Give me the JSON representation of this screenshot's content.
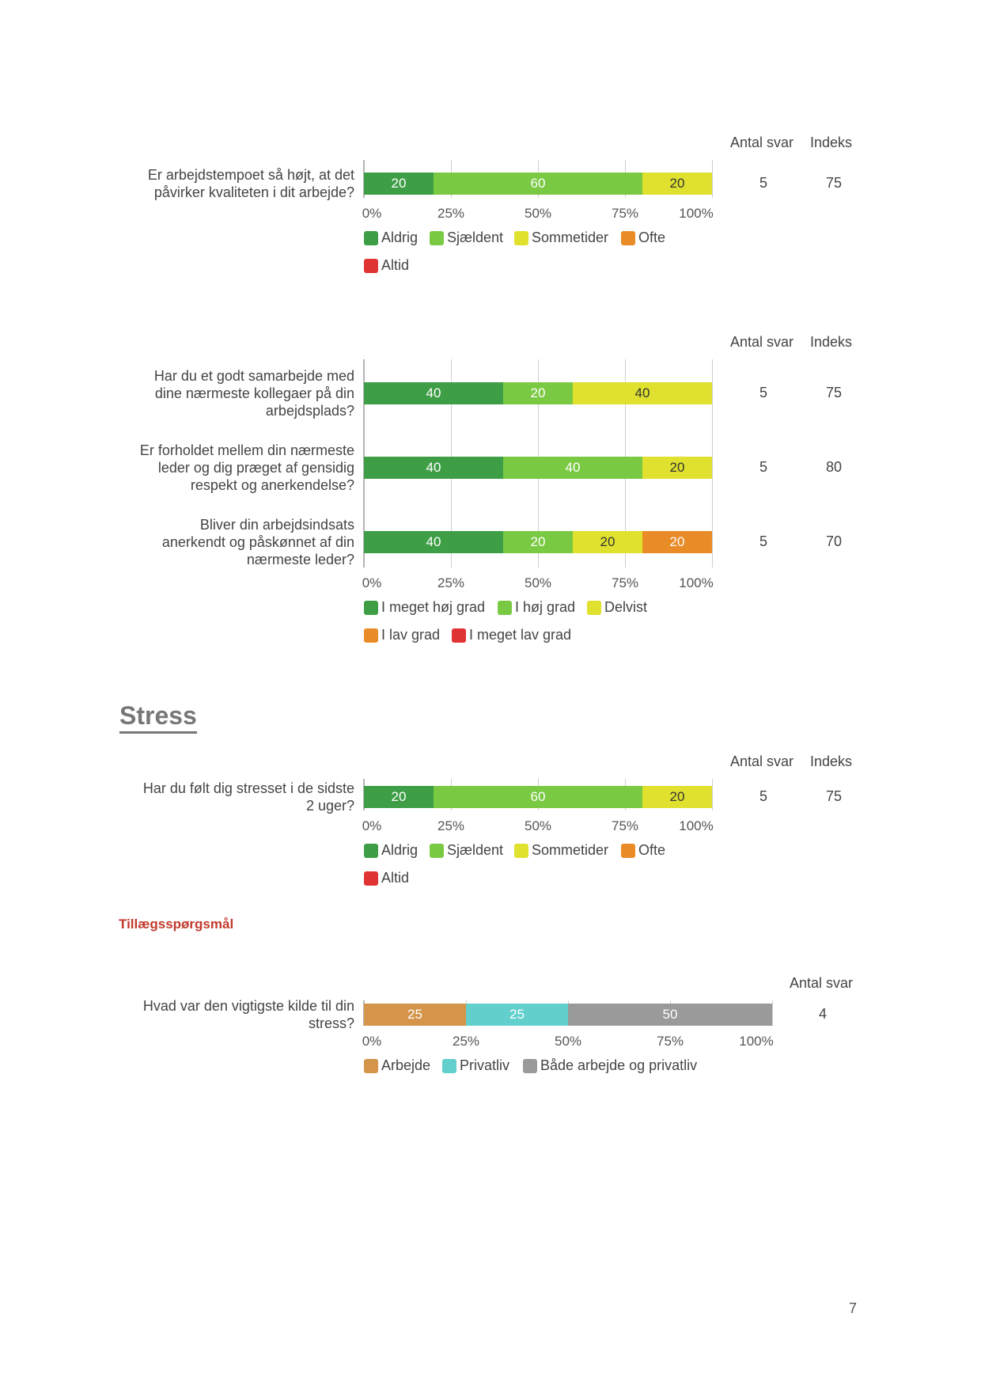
{
  "colors": {
    "aldrig": "#3e9e46",
    "sjaeldent": "#7ac943",
    "sommetider": "#dfe12e",
    "ofte": "#e98b26",
    "altid": "#e03434",
    "arbejde": "#d4954a",
    "privatliv": "#62cfcc",
    "begge": "#9a9a9a"
  },
  "sections": {
    "stress_title": "Stress",
    "tillaeg_title": "Tillægsspørgsmål"
  },
  "page_number": "7",
  "chart_data": [
    {
      "type": "bar",
      "orientation": "horizontal-stacked",
      "columns": {
        "antal_header": "Antal svar",
        "indeks_header": "Indeks"
      },
      "questions": [
        {
          "lines": [
            "Er arbejdstempoet så højt, at det",
            "påvirker kvaliteten i dit arbejde?"
          ],
          "values": [
            20,
            60,
            20,
            0,
            0
          ],
          "antal": "5",
          "indeks": "75"
        }
      ],
      "series": [
        "Aldrig",
        "Sjældent",
        "Sommetider",
        "Ofte",
        "Altid"
      ],
      "series_colors": [
        "aldrig",
        "sjaeldent",
        "sommetider",
        "ofte",
        "altid"
      ],
      "ticks": [
        "0%",
        "25%",
        "50%",
        "75%",
        "100%"
      ],
      "xlim": [
        0,
        100
      ]
    },
    {
      "type": "bar",
      "orientation": "horizontal-stacked",
      "columns": {
        "antal_header": "Antal svar",
        "indeks_header": "Indeks"
      },
      "questions": [
        {
          "lines": [
            "Har du et godt samarbejde med",
            "dine nærmeste kollegaer på din",
            "arbejdsplads?"
          ],
          "values": [
            40,
            20,
            40,
            0,
            0
          ],
          "antal": "5",
          "indeks": "75"
        },
        {
          "lines": [
            "Er forholdet mellem din nærmeste",
            "leder og dig præget af gensidig",
            "respekt og anerkendelse?"
          ],
          "values": [
            40,
            40,
            20,
            0,
            0
          ],
          "antal": "5",
          "indeks": "80"
        },
        {
          "lines": [
            "Bliver din arbejdsindsats",
            "anerkendt og påskønnet af din",
            "nærmeste leder?"
          ],
          "values": [
            40,
            20,
            20,
            20,
            0
          ],
          "antal": "5",
          "indeks": "70"
        }
      ],
      "series": [
        "I meget høj grad",
        "I høj grad",
        "Delvist",
        "I lav grad",
        "I meget lav grad"
      ],
      "series_colors": [
        "aldrig",
        "sjaeldent",
        "sommetider",
        "ofte",
        "altid"
      ],
      "ticks": [
        "0%",
        "25%",
        "50%",
        "75%",
        "100%"
      ],
      "xlim": [
        0,
        100
      ]
    },
    {
      "type": "bar",
      "orientation": "horizontal-stacked",
      "columns": {
        "antal_header": "Antal svar",
        "indeks_header": "Indeks"
      },
      "questions": [
        {
          "lines": [
            "Har du følt dig stresset i de sidste",
            "2 uger?"
          ],
          "values": [
            20,
            60,
            20,
            0,
            0
          ],
          "antal": "5",
          "indeks": "75"
        }
      ],
      "series": [
        "Aldrig",
        "Sjældent",
        "Sommetider",
        "Ofte",
        "Altid"
      ],
      "series_colors": [
        "aldrig",
        "sjaeldent",
        "sommetider",
        "ofte",
        "altid"
      ],
      "ticks": [
        "0%",
        "25%",
        "50%",
        "75%",
        "100%"
      ],
      "xlim": [
        0,
        100
      ]
    },
    {
      "type": "bar",
      "orientation": "horizontal-stacked",
      "columns": {
        "antal_header": "Antal svar"
      },
      "questions": [
        {
          "lines": [
            "Hvad var den vigtigste kilde til din",
            "stress?"
          ],
          "values": [
            25,
            25,
            50
          ],
          "antal": "4"
        }
      ],
      "series": [
        "Arbejde",
        "Privatliv",
        "Både arbejde og privatliv"
      ],
      "series_colors": [
        "arbejde",
        "privatliv",
        "begge"
      ],
      "ticks": [
        "0%",
        "25%",
        "50%",
        "75%",
        "100%"
      ],
      "xlim": [
        0,
        100
      ]
    }
  ]
}
